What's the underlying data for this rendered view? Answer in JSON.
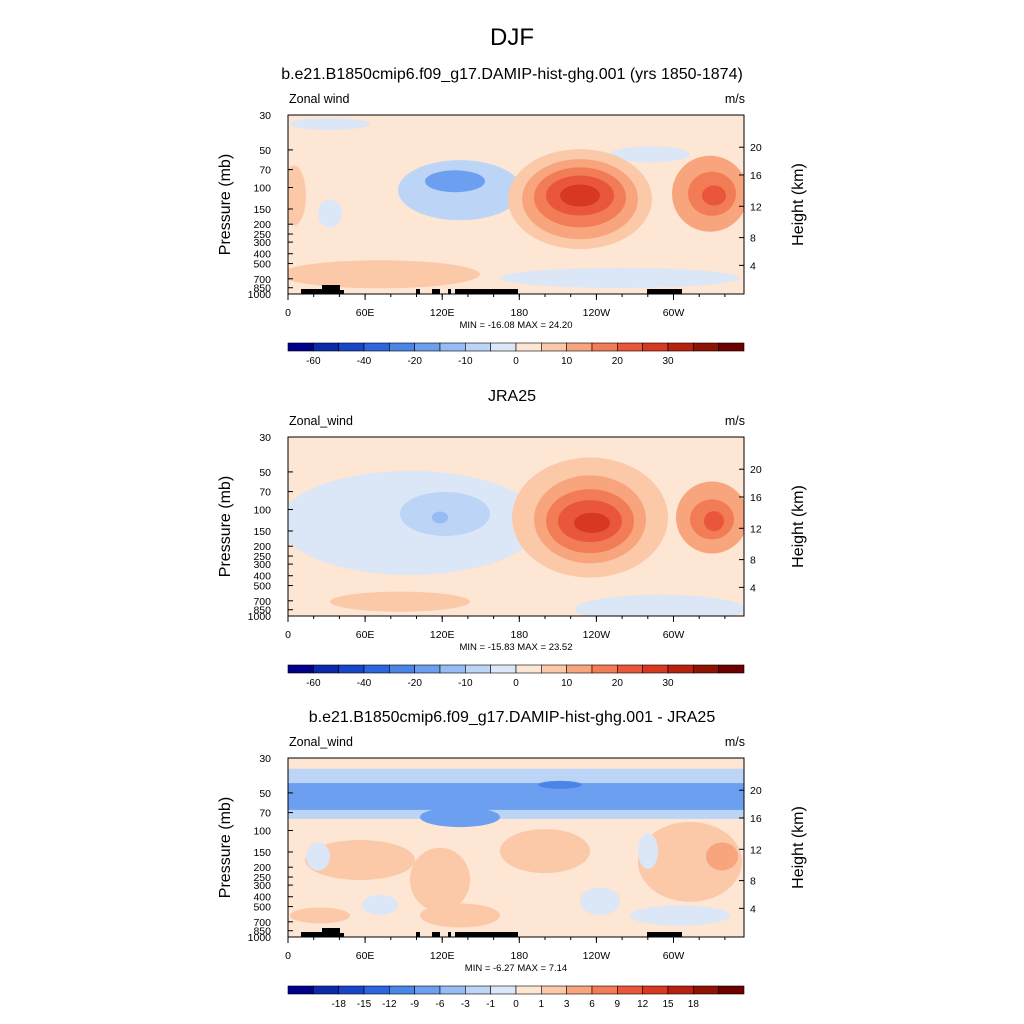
{
  "figure": {
    "title": "DJF"
  },
  "chart_data": [
    {
      "type": "heatmap",
      "title": "b.e21.B1850cmip6.f09_g17.DAMIP-hist-ghg.001 (yrs 1850-1874)",
      "left_label": "Zonal wind",
      "right_label": "m/s",
      "ylabel": "Pressure (mb)",
      "ylabel_right": "Height (km)",
      "x_ticks": [
        "0",
        "60E",
        "120E",
        "180",
        "120W",
        "60W"
      ],
      "y_ticks": [
        "30",
        "50",
        "70",
        "100",
        "150",
        "200",
        "250",
        "300",
        "400",
        "500",
        "700",
        "850",
        "1000"
      ],
      "y_ticks_right": [
        "20",
        "16",
        "12",
        "8",
        "4"
      ],
      "stats": "MIN = -16.08  MAX =  24.20",
      "colorbar_labels": [
        "-60",
        "-40",
        "-20",
        "-10",
        "0",
        "10",
        "20",
        "30"
      ],
      "min": -16.08,
      "max": 24.2,
      "topography": true
    },
    {
      "type": "heatmap",
      "title": "JRA25",
      "left_label": "Zonal_wind",
      "right_label": "m/s",
      "ylabel": "Pressure (mb)",
      "ylabel_right": "Height (km)",
      "x_ticks": [
        "0",
        "60E",
        "120E",
        "180",
        "120W",
        "60W"
      ],
      "y_ticks": [
        "30",
        "50",
        "70",
        "100",
        "150",
        "200",
        "250",
        "300",
        "400",
        "500",
        "700",
        "850",
        "1000"
      ],
      "y_ticks_right": [
        "20",
        "16",
        "12",
        "8",
        "4"
      ],
      "stats": "MIN = -15.83  MAX =  23.52",
      "colorbar_labels": [
        "-60",
        "-40",
        "-20",
        "-10",
        "0",
        "10",
        "20",
        "30"
      ],
      "min": -15.83,
      "max": 23.52,
      "topography": false
    },
    {
      "type": "heatmap",
      "title": "b.e21.B1850cmip6.f09_g17.DAMIP-hist-ghg.001 - JRA25",
      "left_label": "Zonal_wind",
      "right_label": "m/s",
      "ylabel": "Pressure (mb)",
      "ylabel_right": "Height (km)",
      "x_ticks": [
        "0",
        "60E",
        "120E",
        "180",
        "120W",
        "60W"
      ],
      "y_ticks": [
        "30",
        "50",
        "70",
        "100",
        "150",
        "200",
        "250",
        "300",
        "400",
        "500",
        "700",
        "850",
        "1000"
      ],
      "y_ticks_right": [
        "20",
        "16",
        "12",
        "8",
        "4"
      ],
      "stats": "MIN = -6.27  MAX =  7.14",
      "colorbar_labels": [
        "-18",
        "-15",
        "-12",
        "-9",
        "-6",
        "-3",
        "-1",
        "0",
        "1",
        "3",
        "6",
        "9",
        "12",
        "15",
        "18"
      ],
      "min": -6.27,
      "max": 7.14,
      "topography": true
    }
  ],
  "colors": {
    "colormap": [
      "#00008b",
      "#0a2aa8",
      "#1746c8",
      "#2c65dd",
      "#4a86e8",
      "#6d9ff0",
      "#97bcf5",
      "#bcd4f6",
      "#dbe7f7",
      "#fde6d4",
      "#fbc8a8",
      "#f8a57e",
      "#f27c56",
      "#e9563a",
      "#d83720",
      "#b7220f",
      "#8f1205",
      "#6d0000"
    ],
    "topography": "#000000"
  }
}
